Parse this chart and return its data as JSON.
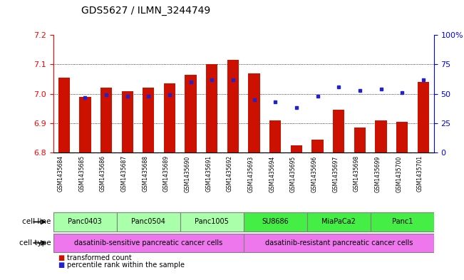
{
  "title": "GDS5627 / ILMN_3244749",
  "samples": [
    "GSM1435684",
    "GSM1435685",
    "GSM1435686",
    "GSM1435687",
    "GSM1435688",
    "GSM1435689",
    "GSM1435690",
    "GSM1435691",
    "GSM1435692",
    "GSM1435693",
    "GSM1435694",
    "GSM1435695",
    "GSM1435696",
    "GSM1435697",
    "GSM1435698",
    "GSM1435699",
    "GSM1435700",
    "GSM1435701"
  ],
  "transformed_count": [
    7.055,
    6.99,
    7.02,
    7.01,
    7.02,
    7.035,
    7.065,
    7.1,
    7.115,
    7.07,
    6.91,
    6.825,
    6.845,
    6.945,
    6.885,
    6.91,
    6.905,
    7.04
  ],
  "percentile_rank": [
    null,
    47,
    49,
    48,
    48,
    49,
    60,
    62,
    62,
    45,
    43,
    38,
    48,
    56,
    53,
    54,
    51,
    62
  ],
  "cell_lines": [
    {
      "label": "Panc0403",
      "start": 0,
      "end": 2,
      "color": "#aaffaa"
    },
    {
      "label": "Panc0504",
      "start": 3,
      "end": 5,
      "color": "#aaffaa"
    },
    {
      "label": "Panc1005",
      "start": 6,
      "end": 8,
      "color": "#aaffaa"
    },
    {
      "label": "SU8686",
      "start": 9,
      "end": 11,
      "color": "#44ee44"
    },
    {
      "label": "MiaPaCa2",
      "start": 12,
      "end": 14,
      "color": "#44ee44"
    },
    {
      "label": "Panc1",
      "start": 15,
      "end": 17,
      "color": "#44ee44"
    }
  ],
  "cell_types": [
    {
      "label": "dasatinib-sensitive pancreatic cancer cells",
      "start": 0,
      "end": 8,
      "color": "#ee77ee"
    },
    {
      "label": "dasatinib-resistant pancreatic cancer cells",
      "start": 9,
      "end": 17,
      "color": "#ee77ee"
    }
  ],
  "ylim_left": [
    6.8,
    7.2
  ],
  "ylim_right": [
    0,
    100
  ],
  "yticks_left": [
    6.8,
    6.9,
    7.0,
    7.1,
    7.2
  ],
  "yticks_right": [
    0,
    25,
    50,
    75,
    100
  ],
  "bar_color": "#cc1100",
  "dot_color": "#2222cc",
  "bar_bottom": 6.8,
  "bg_color": "#ffffff",
  "tick_bg": "#d8d8d8"
}
